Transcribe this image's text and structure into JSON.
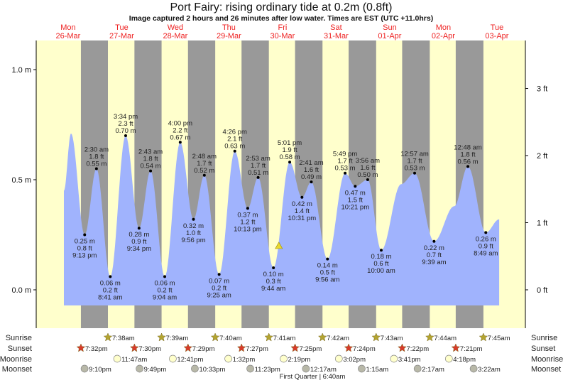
{
  "title": "Port Fairy: rising  ordinary tide at 0.2m (0.8ft)",
  "subtitle": "Image captured 2 hours and 26 minutes after low water. Times are EST (UTC +11.0hrs)",
  "colors": {
    "day_bg": "#ffffcc",
    "night_bg": "#999999",
    "water": "#a0b3fd",
    "date_text": "#ee2222",
    "sunrise_icon": "#b3a430",
    "sunset_icon": "#d83a2a",
    "moonrise_icon": "#ffffcc",
    "moonset_icon": "#b8b8a8",
    "current_marker": "#e8d830"
  },
  "chart_data": {
    "type": "area",
    "title": "Port Fairy: rising  ordinary tide at 0.2m (0.8ft)",
    "days": [
      {
        "dow": "Mon",
        "date": "26-Mar"
      },
      {
        "dow": "Tue",
        "date": "27-Mar"
      },
      {
        "dow": "Wed",
        "date": "28-Mar"
      },
      {
        "dow": "Thu",
        "date": "29-Mar"
      },
      {
        "dow": "Fri",
        "date": "30-Mar"
      },
      {
        "dow": "Sat",
        "date": "31-Mar"
      },
      {
        "dow": "Sun",
        "date": "01-Apr"
      },
      {
        "dow": "Mon",
        "date": "02-Apr"
      },
      {
        "dow": "Tue",
        "date": "03-Apr"
      }
    ],
    "y_left": {
      "unit": "m",
      "range": [
        -0.16,
        1.13
      ],
      "ticks": [
        "0.0 m",
        "0.5 m",
        "1.0 m"
      ],
      "tick_values": [
        0,
        0.5,
        1.0
      ]
    },
    "y_right": {
      "unit": "ft",
      "ticks": [
        "0 ft",
        "1 ft",
        "2 ft",
        "3 ft"
      ],
      "tick_values": [
        0,
        1,
        2,
        3
      ]
    },
    "extremes": [
      {
        "type": "low",
        "date": "26-Mar",
        "time": "9:13 pm",
        "m": "0.25 m",
        "ft": "0.8 ft",
        "value": 0.25
      },
      {
        "type": "high",
        "date": "27-Mar",
        "time": "2:30 am",
        "m": "0.55 m",
        "ft": "1.8 ft",
        "value": 0.55
      },
      {
        "type": "low",
        "date": "27-Mar",
        "time": "8:41 am",
        "m": "0.06 m",
        "ft": "0.2 ft",
        "value": 0.06
      },
      {
        "type": "high",
        "date": "27-Mar",
        "time": "3:34 pm",
        "m": "0.70 m",
        "ft": "2.3 ft",
        "value": 0.7
      },
      {
        "type": "low",
        "date": "27-Mar",
        "time": "9:34 pm",
        "m": "0.28 m",
        "ft": "0.9 ft",
        "value": 0.28
      },
      {
        "type": "high",
        "date": "28-Mar",
        "time": "2:43 am",
        "m": "0.54 m",
        "ft": "1.8 ft",
        "value": 0.54
      },
      {
        "type": "low",
        "date": "28-Mar",
        "time": "9:04 am",
        "m": "0.06 m",
        "ft": "0.2 ft",
        "value": 0.06
      },
      {
        "type": "high",
        "date": "28-Mar",
        "time": "4:00 pm",
        "m": "0.67 m",
        "ft": "2.2 ft",
        "value": 0.67
      },
      {
        "type": "low",
        "date": "28-Mar",
        "time": "9:56 pm",
        "m": "0.32 m",
        "ft": "1.0 ft",
        "value": 0.32
      },
      {
        "type": "high",
        "date": "29-Mar",
        "time": "2:48 am",
        "m": "0.52 m",
        "ft": "1.7 ft",
        "value": 0.52
      },
      {
        "type": "low",
        "date": "29-Mar",
        "time": "9:25 am",
        "m": "0.07 m",
        "ft": "0.2 ft",
        "value": 0.07
      },
      {
        "type": "high",
        "date": "29-Mar",
        "time": "4:26 pm",
        "m": "0.63 m",
        "ft": "2.1 ft",
        "value": 0.63
      },
      {
        "type": "low",
        "date": "29-Mar",
        "time": "10:13 pm",
        "m": "0.37 m",
        "ft": "1.2 ft",
        "value": 0.37
      },
      {
        "type": "high",
        "date": "30-Mar",
        "time": "2:53 am",
        "m": "0.51 m",
        "ft": "1.7 ft",
        "value": 0.51
      },
      {
        "type": "low",
        "date": "30-Mar",
        "time": "9:44 am",
        "m": "0.10 m",
        "ft": "0.3 ft",
        "value": 0.1
      },
      {
        "type": "high",
        "date": "30-Mar",
        "time": "5:01 pm",
        "m": "0.58 m",
        "ft": "1.9 ft",
        "value": 0.58
      },
      {
        "type": "low",
        "date": "30-Mar",
        "time": "10:31 pm",
        "m": "0.42 m",
        "ft": "1.4 ft",
        "value": 0.42
      },
      {
        "type": "high",
        "date": "31-Mar",
        "time": "2:41 am",
        "m": "0.49 m",
        "ft": "1.6 ft",
        "value": 0.49
      },
      {
        "type": "low",
        "date": "31-Mar",
        "time": "9:56 am",
        "m": "0.14 m",
        "ft": "0.5 ft",
        "value": 0.14
      },
      {
        "type": "high",
        "date": "31-Mar",
        "time": "5:49 pm",
        "m": "0.53 m",
        "ft": "1.7 ft",
        "value": 0.53
      },
      {
        "type": "low",
        "date": "31-Mar",
        "time": "10:21 pm",
        "m": "0.47 m",
        "ft": "1.5 ft",
        "value": 0.47
      },
      {
        "type": "high",
        "date": "01-Apr",
        "time": "3:56 am",
        "m": "0.50 m",
        "ft": "1.6 ft",
        "value": 0.5
      },
      {
        "type": "low",
        "date": "01-Apr",
        "time": "10:00 am",
        "m": "0.18 m",
        "ft": "0.6 ft",
        "value": 0.18
      },
      {
        "type": "high",
        "date": "02-Apr",
        "time": "12:57 am",
        "m": "0.53 m",
        "ft": "1.7 ft",
        "value": 0.53
      },
      {
        "type": "low",
        "date": "02-Apr",
        "time": "9:39 am",
        "m": "0.22 m",
        "ft": "0.7 ft",
        "value": 0.22
      },
      {
        "type": "high",
        "date": "03-Apr",
        "time": "12:48 am",
        "m": "0.56 m",
        "ft": "1.8 ft",
        "value": 0.56
      },
      {
        "type": "low",
        "date": "03-Apr",
        "time": "8:49 am",
        "m": "0.26 m",
        "ft": "0.9 ft",
        "value": 0.26
      }
    ],
    "unlabeled_curve_points": [
      {
        "date": "26-Mar",
        "time": "11:55 am",
        "value": 0.45
      },
      {
        "date": "26-Mar",
        "time": "3:06 pm",
        "value": 0.71
      },
      {
        "date": "01-Apr",
        "time": "6:54 pm",
        "value": 0.48
      },
      {
        "date": "02-Apr",
        "time": "6:42 pm",
        "value": 0.38
      },
      {
        "date": "03-Apr",
        "time": "2:48 pm",
        "value": 0.32
      }
    ],
    "current": {
      "date": "30-Mar",
      "time": "12:10 pm",
      "value": 0.2
    }
  },
  "rows": {
    "sunrise": {
      "label": "Sunrise",
      "events": [
        {
          "date": "27-Mar",
          "time": "7:38am"
        },
        {
          "date": "28-Mar",
          "time": "7:39am"
        },
        {
          "date": "29-Mar",
          "time": "7:40am"
        },
        {
          "date": "30-Mar",
          "time": "7:41am"
        },
        {
          "date": "31-Mar",
          "time": "7:42am"
        },
        {
          "date": "01-Apr",
          "time": "7:43am"
        },
        {
          "date": "02-Apr",
          "time": "7:44am"
        },
        {
          "date": "03-Apr",
          "time": "7:45am"
        }
      ]
    },
    "sunset": {
      "label": "Sunset",
      "events": [
        {
          "date": "26-Mar",
          "time": "7:32pm"
        },
        {
          "date": "27-Mar",
          "time": "7:30pm"
        },
        {
          "date": "28-Mar",
          "time": "7:29pm"
        },
        {
          "date": "29-Mar",
          "time": "7:27pm"
        },
        {
          "date": "30-Mar",
          "time": "7:25pm"
        },
        {
          "date": "31-Mar",
          "time": "7:24pm"
        },
        {
          "date": "01-Apr",
          "time": "7:22pm"
        },
        {
          "date": "02-Apr",
          "time": "7:21pm"
        }
      ]
    },
    "moonrise": {
      "label": "Moonrise",
      "events": [
        {
          "date": "27-Mar",
          "time": "11:47am"
        },
        {
          "date": "28-Mar",
          "time": "12:41pm"
        },
        {
          "date": "29-Mar",
          "time": "1:32pm"
        },
        {
          "date": "30-Mar",
          "time": "2:19pm"
        },
        {
          "date": "31-Mar",
          "time": "3:02pm"
        },
        {
          "date": "01-Apr",
          "time": "3:41pm"
        },
        {
          "date": "02-Apr",
          "time": "4:18pm"
        }
      ]
    },
    "moonset": {
      "label": "Moonset",
      "events": [
        {
          "date": "26-Mar",
          "time": "9:10pm"
        },
        {
          "date": "27-Mar",
          "time": "9:49pm"
        },
        {
          "date": "28-Mar",
          "time": "10:33pm"
        },
        {
          "date": "29-Mar",
          "time": "11:23pm"
        },
        {
          "date": "31-Mar",
          "time": "12:17am"
        },
        {
          "date": "01-Apr",
          "time": "1:15am"
        },
        {
          "date": "02-Apr",
          "time": "2:17am"
        },
        {
          "date": "03-Apr",
          "time": "3:22am"
        }
      ]
    }
  },
  "moon_phase": "First Quarter | 6:40am"
}
